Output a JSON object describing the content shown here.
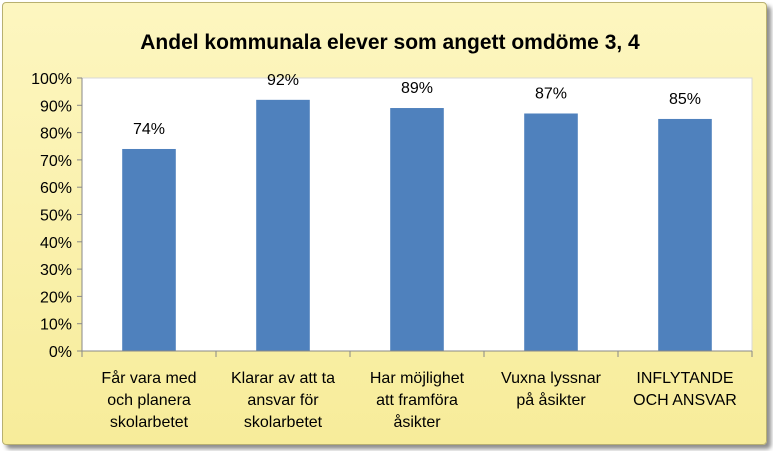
{
  "chart_data": {
    "type": "bar",
    "title": "Andel kommunala elever som angett omdöme 3, 4",
    "categories": [
      [
        "Får vara med",
        "och planera",
        "skolarbetet"
      ],
      [
        "Klarar av att ta",
        "ansvar för",
        "skolarbetet"
      ],
      [
        "Har möjlighet",
        "att framföra",
        "åsikter"
      ],
      [
        "Vuxna lyssnar",
        "på åsikter"
      ],
      [
        "INFLYTANDE",
        "OCH ANSVAR"
      ]
    ],
    "values": [
      74,
      92,
      89,
      87,
      85
    ],
    "data_labels": [
      "74%",
      "92%",
      "89%",
      "87%",
      "85%"
    ],
    "ylim": [
      0,
      100
    ],
    "yticks": [
      "0%",
      "10%",
      "20%",
      "30%",
      "40%",
      "50%",
      "60%",
      "70%",
      "80%",
      "90%",
      "100%"
    ],
    "xlabel": "",
    "ylabel": "",
    "grid": false,
    "legend": "none",
    "colors": {
      "bar": "#4f81bd",
      "plot_background": "#ffffff",
      "axis": "#888888"
    }
  }
}
